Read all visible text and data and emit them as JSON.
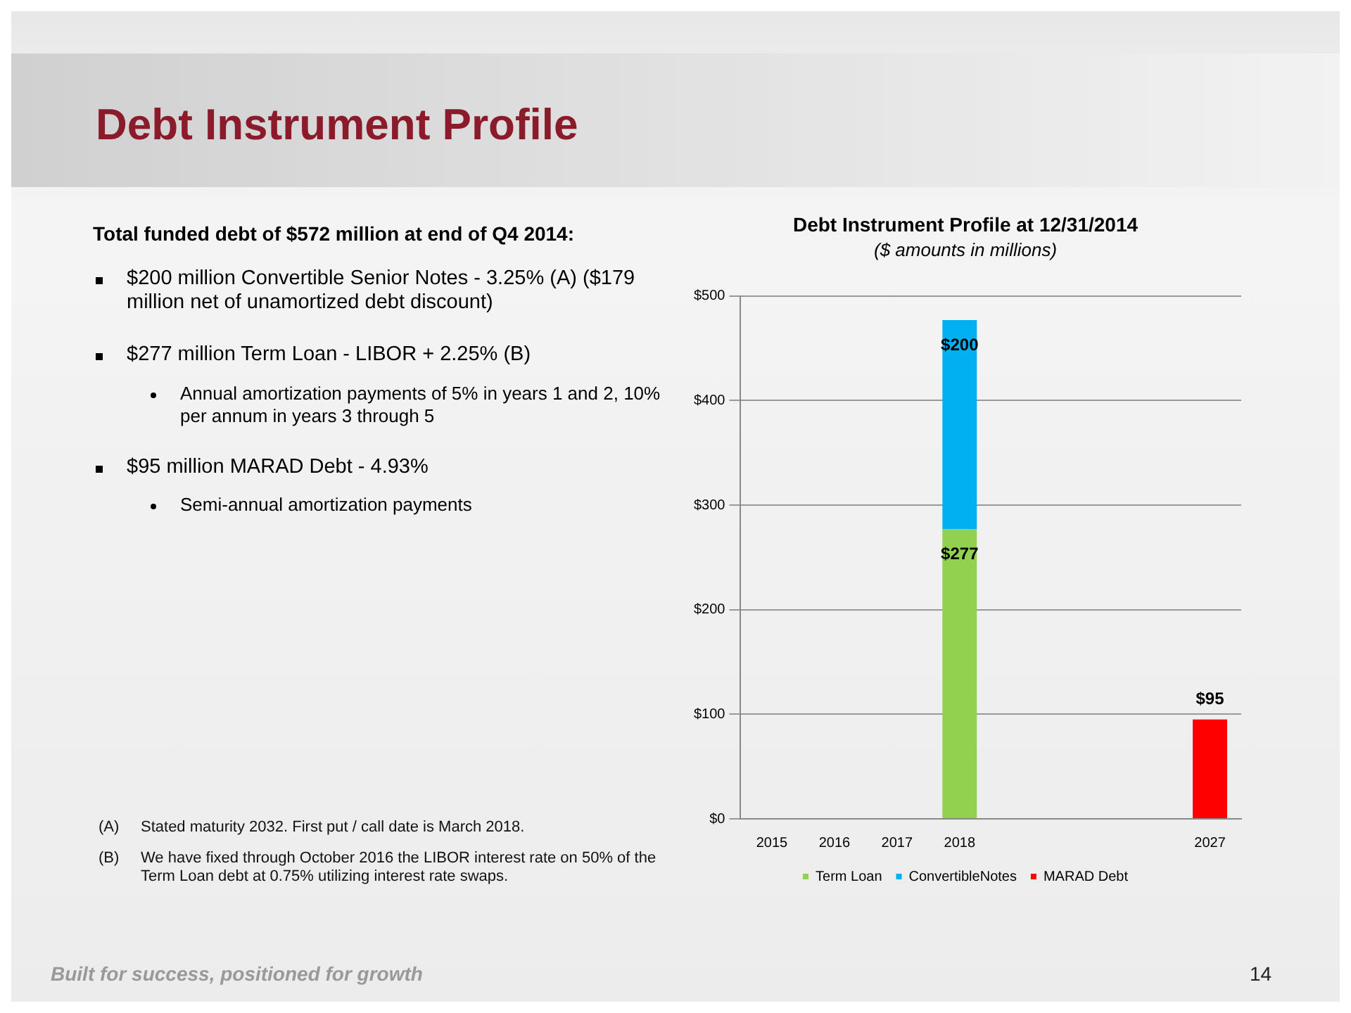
{
  "chart_data": {
    "type": "bar",
    "title": "Debt Instrument Profile at 12/31/2014",
    "subtitle": "($ amounts in millions)",
    "categories": [
      "2015",
      "2016",
      "2017",
      "2018",
      null,
      null,
      null,
      "2027"
    ],
    "stacked": true,
    "series": [
      {
        "name": "Term Loan",
        "color": "#92d050",
        "values": [
          null,
          null,
          null,
          277,
          null,
          null,
          null,
          null
        ],
        "value_labels": [
          null,
          null,
          null,
          "$277",
          null,
          null,
          null,
          null
        ]
      },
      {
        "name": "ConvertibleNotes",
        "color": "#00b0f0",
        "values": [
          null,
          null,
          null,
          200,
          null,
          null,
          null,
          null
        ],
        "value_labels": [
          null,
          null,
          null,
          "$200",
          null,
          null,
          null,
          null
        ]
      },
      {
        "name": "MARAD Debt",
        "color": "#ff0000",
        "values": [
          null,
          null,
          null,
          null,
          null,
          null,
          null,
          95
        ],
        "value_labels": [
          null,
          null,
          null,
          null,
          null,
          null,
          null,
          "$95"
        ]
      }
    ],
    "ylim": [
      0,
      500
    ],
    "yticks": [
      {
        "value": 0,
        "label": "$0"
      },
      {
        "value": 100,
        "label": "$100"
      },
      {
        "value": 200,
        "label": "$200"
      },
      {
        "value": 300,
        "label": "$300"
      },
      {
        "value": 400,
        "label": "$400"
      },
      {
        "value": 500,
        "label": "$500"
      }
    ],
    "grid": "y",
    "legend": "bottom",
    "annotations": [
      "Debt Instrument Profile",
      "Total funded debt of $572 million at end of Q4 2014:",
      "$200 million Convertible Senior Notes - 3.25% (A) ($179 million net of unamortized debt discount)",
      "$277 million Term Loan - LIBOR + 2.25% (B)",
      "Annual amortization payments of 5% in years 1 and 2, 10% per annum in years 3 through 5",
      "$95 million MARAD Debt - 4.93%",
      "Semi-annual amortization payments",
      "(A) Stated maturity 2032. First put / call date is March 2018.",
      "(B) We have fixed through October 2016 the LIBOR interest rate on 50% of the Term Loan debt at 0.75% utilizing interest rate swaps.",
      "Built for success, positioned for growth",
      "14"
    ]
  }
}
